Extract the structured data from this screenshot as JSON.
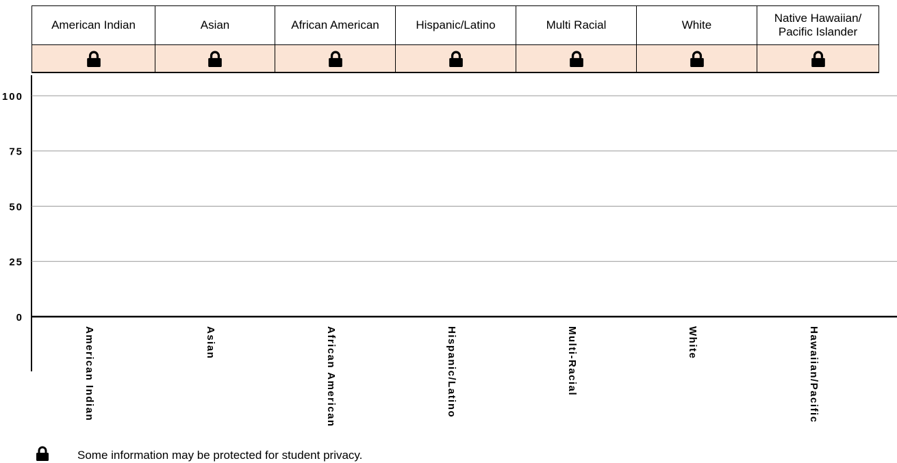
{
  "table": {
    "columns": [
      "American Indian",
      "Asian",
      "African American",
      "Hispanic/Latino",
      "Multi Racial",
      "White",
      "Native Hawaiian/ Pacific Islander"
    ]
  },
  "chart_data": {
    "type": "bar",
    "categories": [
      "American Indian",
      "Asian",
      "African American",
      "Hispanic/Latino",
      "Multi-Racial",
      "White",
      "Hawaiian/Pacific"
    ],
    "ylim": [
      0,
      100
    ],
    "yticks": [
      0,
      25,
      50,
      75,
      100
    ],
    "grid": true
  },
  "footer": {
    "note": "Some information may be protected for student privacy."
  }
}
